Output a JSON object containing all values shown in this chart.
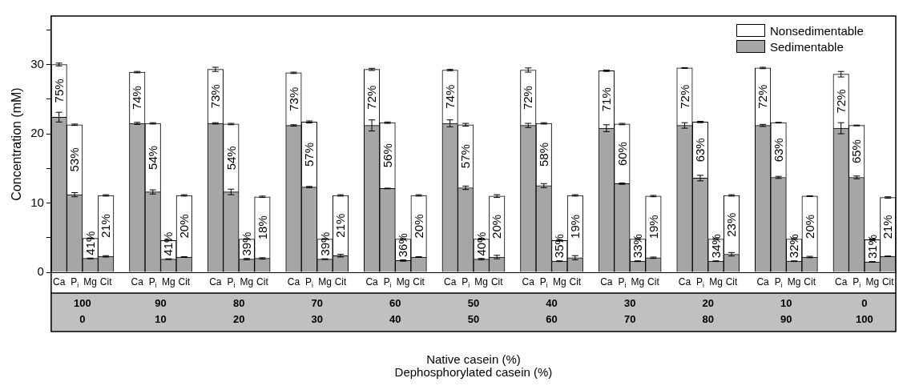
{
  "chart_data": {
    "type": "bar",
    "stacked": true,
    "ylabel": "Concentration (mM)",
    "ylim": [
      0,
      37
    ],
    "yticks": [
      0,
      {
        "value": 5,
        "label": null
      },
      10,
      {
        "value": 15,
        "label": null
      },
      20,
      {
        "value": 25,
        "label": null
      },
      30,
      {
        "value": 35,
        "label": null
      }
    ],
    "legend": "top right",
    "categories": [
      "Ca",
      "P$_{i}$",
      "Mg",
      "Cit",
      null,
      "Ca",
      "P$_{i}$",
      "Mg",
      "Cit",
      null,
      "Ca",
      "P$_{i}$",
      "Mg",
      "Cit",
      null,
      "Ca",
      "P$_{i}$",
      "Mg",
      "Cit",
      null,
      "Ca",
      "P$_{i}$",
      "Mg",
      "Cit",
      null,
      "Ca",
      "P$_{i}$",
      "Mg",
      "Cit",
      null,
      "Ca",
      "P$_{i}$",
      "Mg",
      "Cit",
      null,
      "Ca",
      "P$_{i}$",
      "Mg",
      "Cit",
      null,
      "Ca",
      "P$_{i}$",
      "Mg",
      "Cit",
      null,
      "Ca",
      "P$_{i}$",
      "Mg",
      "Cit",
      null,
      "Ca",
      "P$_{i}$",
      "Mg",
      "Cit"
    ],
    "series": [
      {
        "name": "Sedimentable",
        "color": "#a6a6a6",
        "values": [
          22.4,
          11.2,
          2.0,
          2.3,
          null,
          21.5,
          11.6,
          1.9,
          2.2,
          null,
          21.5,
          11.6,
          1.9,
          2.0,
          null,
          21.2,
          12.3,
          1.9,
          2.4,
          null,
          21.2,
          12.1,
          1.7,
          2.2,
          null,
          21.5,
          12.2,
          1.9,
          2.2,
          null,
          21.2,
          12.5,
          1.6,
          2.1,
          null,
          20.8,
          12.8,
          1.6,
          2.1,
          null,
          21.2,
          13.6,
          1.6,
          2.6,
          null,
          21.2,
          13.7,
          1.6,
          2.2,
          null,
          20.8,
          13.7,
          1.5,
          2.3
        ],
        "errors": [
          0.7,
          0.3,
          0.05,
          0.1,
          null,
          0.15,
          0.3,
          0.05,
          0.05,
          null,
          0.1,
          0.4,
          0.1,
          0.1,
          null,
          0.1,
          0.1,
          0.05,
          0.2,
          null,
          0.8,
          0.05,
          0.1,
          0.05,
          null,
          0.5,
          0.25,
          0.1,
          0.25,
          null,
          0.3,
          0.3,
          0.05,
          0.3,
          null,
          0.5,
          0.1,
          0.05,
          0.1,
          null,
          0.4,
          0.4,
          0.05,
          0.25,
          null,
          0.15,
          0.15,
          0.05,
          0.1,
          null,
          0.8,
          0.2,
          0.05,
          0.05
        ]
      },
      {
        "name": "Nonsedimentable",
        "color": "#ffffff",
        "values": [
          7.6,
          10.1,
          2.9,
          8.8,
          null,
          7.4,
          9.9,
          2.7,
          8.9,
          null,
          7.8,
          9.8,
          2.9,
          8.9,
          null,
          7.6,
          9.4,
          2.9,
          8.7,
          null,
          8.1,
          9.5,
          3.1,
          8.9,
          null,
          7.7,
          9.1,
          2.9,
          8.8,
          null,
          8.0,
          9.0,
          3.0,
          9.0,
          null,
          8.3,
          8.6,
          3.2,
          8.9,
          null,
          8.3,
          8.1,
          3.2,
          8.5,
          null,
          8.3,
          7.9,
          3.2,
          8.8,
          null,
          7.8,
          7.5,
          3.2,
          8.5
        ],
        "errors": [
          0.2,
          0.1,
          0.05,
          0.1,
          null,
          0.1,
          0.1,
          0.05,
          0.1,
          null,
          0.3,
          0.1,
          0.05,
          0.1,
          null,
          0.1,
          0.15,
          0.05,
          0.1,
          null,
          0.15,
          0.1,
          0.05,
          0.1,
          null,
          0.1,
          0.2,
          0.1,
          0.2,
          null,
          0.3,
          0.1,
          0.1,
          0.1,
          null,
          0.1,
          0.1,
          0.05,
          0.1,
          null,
          0.05,
          0.1,
          0.05,
          0.1,
          null,
          0.1,
          0.05,
          0.05,
          0.05,
          null,
          0.4,
          0.05,
          0.1,
          0.1
        ]
      }
    ],
    "annotations": [
      "100\n0",
      "90\n10",
      "80\n20",
      "70\n30",
      "60\n40",
      "50\n50",
      "40\n60",
      "30\n70",
      "20\n80",
      "10\n90",
      "0\n100",
      "75%",
      "53%",
      "41%",
      "21%",
      "74%",
      "54%",
      "41%",
      "20%",
      "73%",
      "54%",
      "39%",
      "18%",
      "73%",
      "57%",
      "39%",
      "21%",
      "72%",
      "56%",
      "36%",
      "20%",
      "74%",
      "57%",
      "40%",
      "20%",
      "72%",
      "58%",
      "35%",
      "19%",
      "71%",
      "60%",
      "33%",
      "19%",
      "72%",
      "63%",
      "34%",
      "23%",
      "72%",
      "63%",
      "32%",
      "20%",
      "72%",
      "65%",
      "31%",
      "21%",
      "Native casein (%)\nDephosphorylated casein (%)"
    ]
  }
}
